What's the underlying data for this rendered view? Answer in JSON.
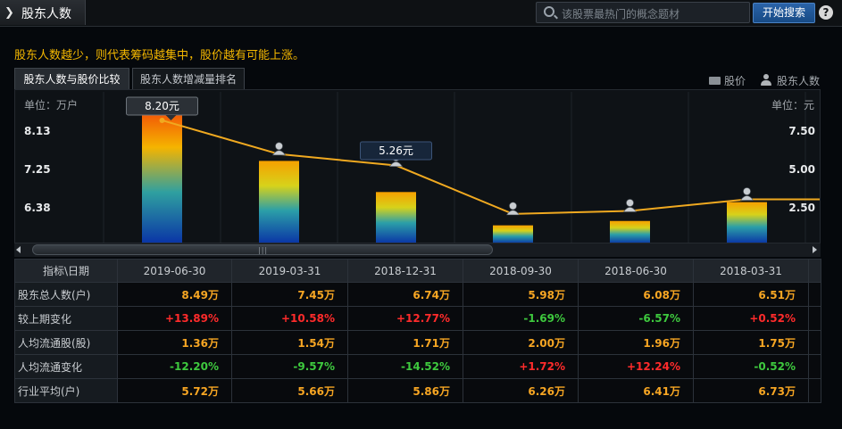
{
  "header": {
    "title": "股东人数",
    "search_placeholder": "该股票最热门的概念题材",
    "search_button": "开始搜索",
    "help": "?"
  },
  "tip": "股东人数越少，则代表筹码越集中，股价越有可能上涨。",
  "tabs": [
    {
      "label": "股东人数与股价比较",
      "active": true
    },
    {
      "label": "股东人数增减量排名",
      "active": false
    }
  ],
  "legend": {
    "price": "股价",
    "holders": "股东人数"
  },
  "chart": {
    "unit_left": "单位：万户",
    "unit_right": "单位：元"
  },
  "chart_data": {
    "type": "bar",
    "categories": [
      "2019-06-30",
      "2019-03-31",
      "2018-12-31",
      "2018-09-30",
      "2018-06-30",
      "2018-03-31"
    ],
    "series": [
      {
        "name": "股东人数",
        "type": "bar",
        "values": [
          8.49,
          7.45,
          6.74,
          5.98,
          6.08,
          6.51
        ]
      },
      {
        "name": "股价",
        "type": "line",
        "values": [
          8.2,
          6.0,
          5.26,
          2.1,
          2.3,
          3.05
        ]
      }
    ],
    "y_left": {
      "ticks": [
        "8.13",
        "7.25",
        "6.38"
      ]
    },
    "y_right": {
      "ticks": [
        "7.50",
        "5.00",
        "2.50"
      ]
    },
    "callouts": [
      {
        "index": 0,
        "label": "8.20元"
      },
      {
        "index": 2,
        "label": "5.26元"
      }
    ],
    "colors": {
      "line": "#f0a920",
      "bar_top": "#f5a800",
      "bar_bottom": "#0c3aa8"
    }
  },
  "table": {
    "corner": "指标\\日期",
    "dates": [
      "2019-06-30",
      "2019-03-31",
      "2018-12-31",
      "2018-09-30",
      "2018-06-30",
      "2018-03-31"
    ],
    "rows": [
      {
        "label": "股东总人数(户)",
        "cells": [
          {
            "v": "8.49万",
            "c": "orange"
          },
          {
            "v": "7.45万",
            "c": "orange"
          },
          {
            "v": "6.74万",
            "c": "orange"
          },
          {
            "v": "5.98万",
            "c": "orange"
          },
          {
            "v": "6.08万",
            "c": "orange"
          },
          {
            "v": "6.51万",
            "c": "orange"
          }
        ]
      },
      {
        "label": "较上期变化",
        "cells": [
          {
            "v": "+13.89%",
            "c": "red"
          },
          {
            "v": "+10.58%",
            "c": "red"
          },
          {
            "v": "+12.77%",
            "c": "red"
          },
          {
            "v": "-1.69%",
            "c": "green"
          },
          {
            "v": "-6.57%",
            "c": "green"
          },
          {
            "v": "+0.52%",
            "c": "red"
          }
        ]
      },
      {
        "label": "人均流通股(股)",
        "cells": [
          {
            "v": "1.36万",
            "c": "orange"
          },
          {
            "v": "1.54万",
            "c": "orange"
          },
          {
            "v": "1.71万",
            "c": "orange"
          },
          {
            "v": "2.00万",
            "c": "orange"
          },
          {
            "v": "1.96万",
            "c": "orange"
          },
          {
            "v": "1.75万",
            "c": "orange"
          }
        ]
      },
      {
        "label": "人均流通变化",
        "cells": [
          {
            "v": "-12.20%",
            "c": "green"
          },
          {
            "v": "-9.57%",
            "c": "green"
          },
          {
            "v": "-14.52%",
            "c": "green"
          },
          {
            "v": "+1.72%",
            "c": "red"
          },
          {
            "v": "+12.24%",
            "c": "red"
          },
          {
            "v": "-0.52%",
            "c": "green"
          }
        ]
      },
      {
        "label": "行业平均(户)",
        "cells": [
          {
            "v": "5.72万",
            "c": "orange"
          },
          {
            "v": "5.66万",
            "c": "orange"
          },
          {
            "v": "5.86万",
            "c": "orange"
          },
          {
            "v": "6.26万",
            "c": "orange"
          },
          {
            "v": "6.41万",
            "c": "orange"
          },
          {
            "v": "6.73万",
            "c": "orange"
          }
        ]
      }
    ]
  }
}
